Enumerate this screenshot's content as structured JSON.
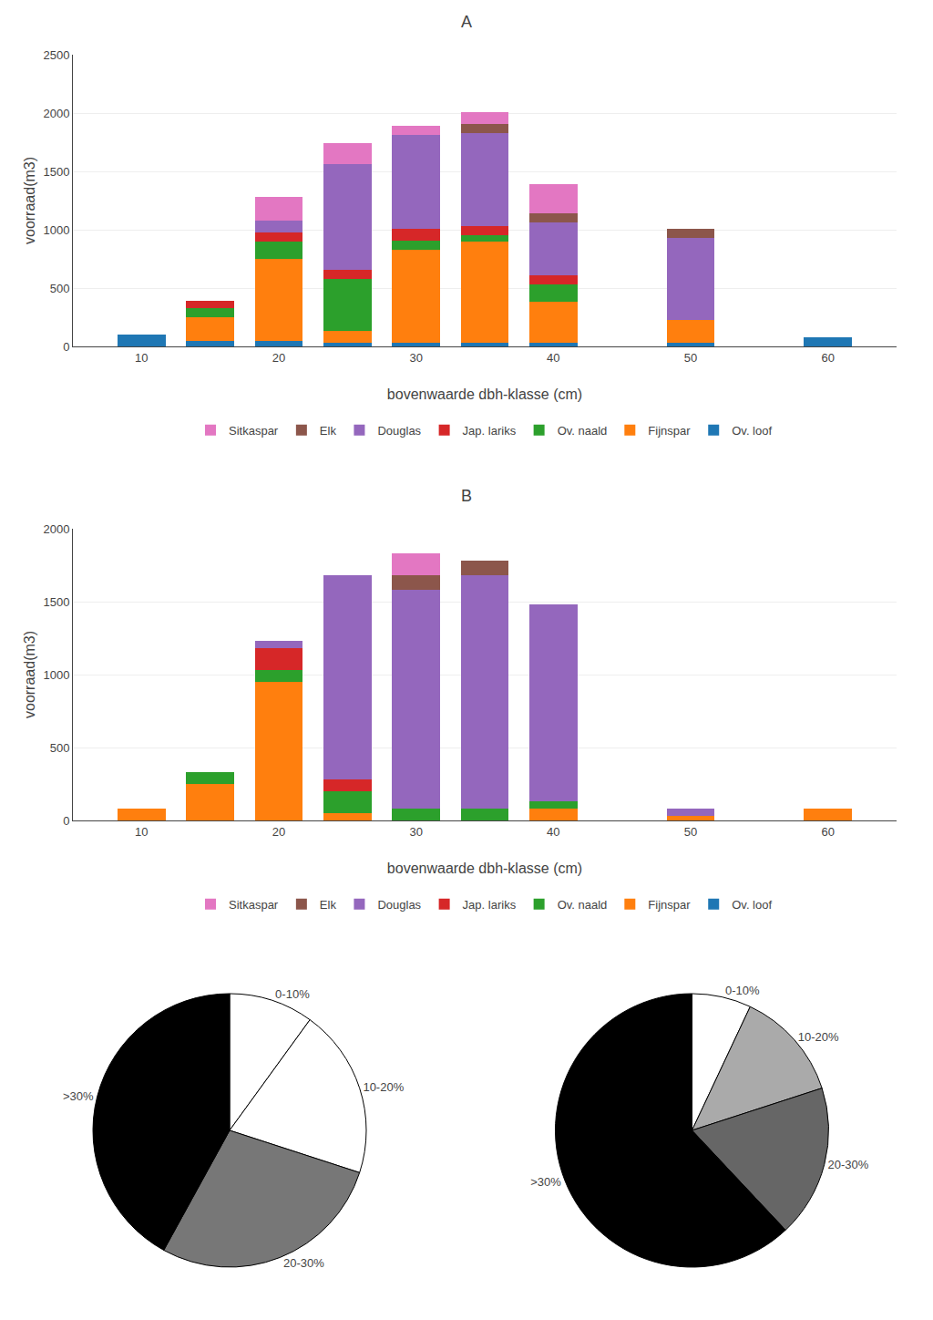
{
  "chart_data": [
    {
      "type": "bar",
      "title": "A",
      "stacked": true,
      "x": [
        10,
        15,
        20,
        25,
        30,
        35,
        40,
        45,
        50,
        55,
        60
      ],
      "series": [
        {
          "name": "Ov. loof",
          "values": [
            100,
            50,
            50,
            30,
            30,
            30,
            30,
            0,
            30,
            0,
            80
          ]
        },
        {
          "name": "Fijnspar",
          "values": [
            0,
            200,
            700,
            100,
            800,
            870,
            350,
            0,
            200,
            0,
            0
          ]
        },
        {
          "name": "Ov. naald",
          "values": [
            0,
            80,
            150,
            450,
            80,
            50,
            150,
            0,
            0,
            0,
            0
          ]
        },
        {
          "name": "Jap. lariks",
          "values": [
            0,
            60,
            80,
            80,
            100,
            80,
            80,
            0,
            0,
            0,
            0
          ]
        },
        {
          "name": "Douglas",
          "values": [
            0,
            0,
            100,
            900,
            800,
            800,
            450,
            0,
            700,
            0,
            0
          ]
        },
        {
          "name": "Elk",
          "values": [
            0,
            0,
            0,
            0,
            0,
            80,
            80,
            0,
            80,
            0,
            0
          ]
        },
        {
          "name": "Sitkaspar",
          "values": [
            0,
            0,
            200,
            180,
            80,
            100,
            250,
            0,
            0,
            0,
            0
          ]
        }
      ],
      "xlabel": "bovenwaarde dbh-klasse (cm)",
      "ylabel": "voorraad(m3)",
      "xlim": [
        5,
        65
      ],
      "xticks": [
        10,
        20,
        30,
        40,
        50,
        60
      ],
      "ylim": [
        0,
        2500
      ],
      "yticks": [
        0,
        500,
        1000,
        1500,
        2000,
        2500
      ],
      "grid": true,
      "legend": "bottom"
    },
    {
      "type": "bar",
      "title": "B",
      "stacked": true,
      "x": [
        10,
        15,
        20,
        25,
        30,
        35,
        40,
        45,
        50,
        55,
        60
      ],
      "series": [
        {
          "name": "Ov. loof",
          "values": [
            0,
            0,
            0,
            0,
            0,
            0,
            0,
            0,
            0,
            0,
            0
          ]
        },
        {
          "name": "Fijnspar",
          "values": [
            80,
            250,
            950,
            50,
            0,
            0,
            80,
            0,
            30,
            0,
            80
          ]
        },
        {
          "name": "Ov. naald",
          "values": [
            0,
            80,
            80,
            150,
            80,
            80,
            50,
            0,
            0,
            0,
            0
          ]
        },
        {
          "name": "Jap. lariks",
          "values": [
            0,
            0,
            150,
            80,
            0,
            0,
            0,
            0,
            0,
            0,
            0
          ]
        },
        {
          "name": "Douglas",
          "values": [
            0,
            0,
            50,
            1400,
            1500,
            1600,
            1350,
            0,
            50,
            0,
            0
          ]
        },
        {
          "name": "Elk",
          "values": [
            0,
            0,
            0,
            0,
            100,
            100,
            0,
            0,
            0,
            0,
            0
          ]
        },
        {
          "name": "Sitkaspar",
          "values": [
            0,
            0,
            0,
            0,
            150,
            0,
            0,
            0,
            0,
            0,
            0
          ]
        }
      ],
      "xlabel": "bovenwaarde dbh-klasse (cm)",
      "ylabel": "voorraad(m3)",
      "xlim": [
        5,
        65
      ],
      "xticks": [
        10,
        20,
        30,
        40,
        50,
        60
      ],
      "ylim": [
        0,
        2000
      ],
      "yticks": [
        0,
        500,
        1000,
        1500,
        2000
      ],
      "grid": true,
      "legend": "bottom"
    },
    {
      "type": "pie",
      "categories": [
        "0-10%",
        "10-20%",
        "20-30%",
        ">30%"
      ],
      "values": [
        10,
        20,
        28,
        42
      ],
      "colors": [
        "white",
        "white",
        "#777777",
        "black"
      ]
    },
    {
      "type": "pie",
      "categories": [
        "0-10%",
        "10-20%",
        "20-30%",
        ">30%"
      ],
      "values": [
        7,
        13,
        18,
        62
      ],
      "colors": [
        "white",
        "#aaaaaa",
        "#666666",
        "black"
      ]
    }
  ]
}
